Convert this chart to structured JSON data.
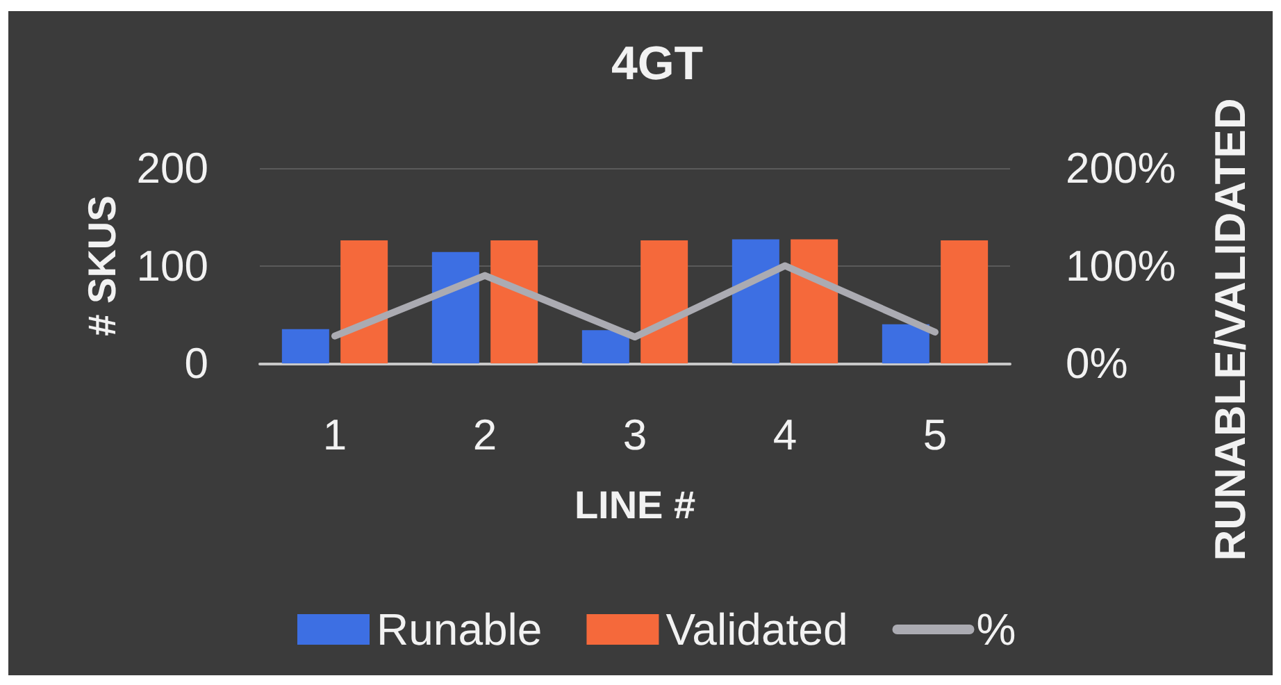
{
  "chart_data": {
    "type": "bar",
    "title": "4GT",
    "xlabel": "LINE #",
    "ylabel": "# SKUS",
    "y2label": "RUNABLE/VALIDATED",
    "categories": [
      "1",
      "2",
      "3",
      "4",
      "5"
    ],
    "series": [
      {
        "name": "Runable",
        "color": "#3d6fe3",
        "values": [
          35,
          114,
          34,
          127,
          40
        ]
      },
      {
        "name": "Validated",
        "color": "#f5693b",
        "values": [
          126,
          126,
          126,
          127,
          126
        ]
      },
      {
        "name": "%",
        "type": "line",
        "axis": "y2",
        "color": "#ababb2",
        "values": [
          28,
          90,
          27,
          100,
          32
        ]
      }
    ],
    "ylim": [
      0,
      200
    ],
    "yticks": [
      0,
      100,
      200
    ],
    "y2lim": [
      0,
      200
    ],
    "y2ticks": [
      {
        "value": 0,
        "label": "0%"
      },
      {
        "value": 100,
        "label": "100%"
      },
      {
        "value": 200,
        "label": "200%"
      }
    ],
    "grid": "y",
    "legend": "bottom",
    "marker": "none",
    "line_style": "solid"
  }
}
